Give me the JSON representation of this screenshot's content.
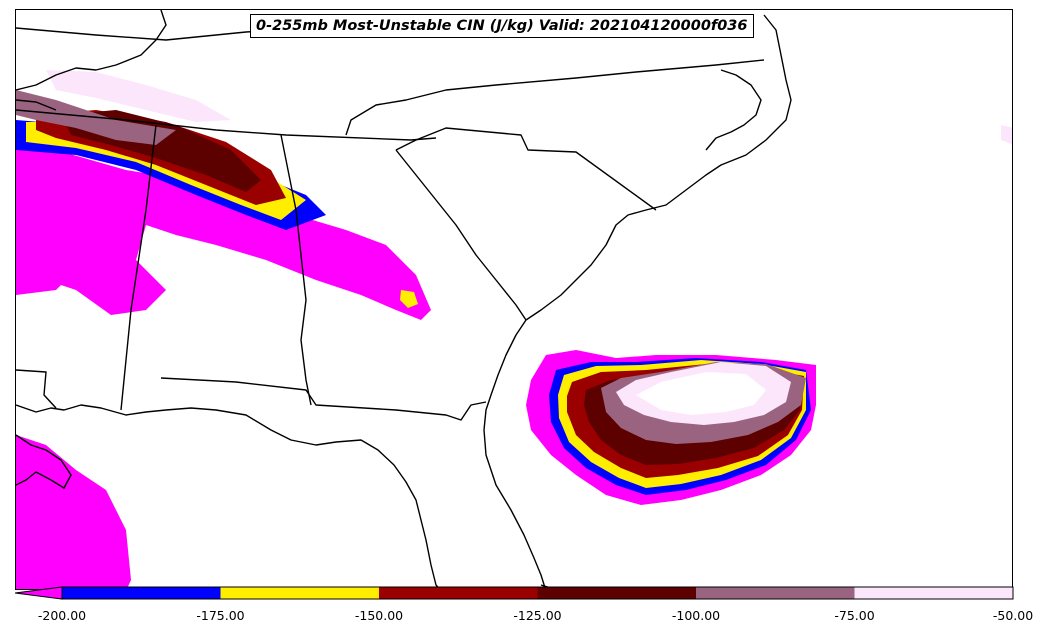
{
  "title": "0-255mb Most-Unstable CIN (J/kg) Valid: 202104120000f036",
  "colorbar": {
    "bins": [
      {
        "from": -200,
        "to": -175,
        "color": "#0000ff"
      },
      {
        "from": -175,
        "to": -150,
        "color": "#ffee00"
      },
      {
        "from": -150,
        "to": -125,
        "color": "#9b0000"
      },
      {
        "from": -125,
        "to": -100,
        "color": "#5c0000"
      },
      {
        "from": -100,
        "to": -75,
        "color": "#9a6480"
      },
      {
        "from": -75,
        "to": -50,
        "color": "#fce6fc"
      }
    ],
    "extend_min_color": "#ff00ff",
    "tick_labels": [
      "-200.00",
      "-175.00",
      "-150.00",
      "-125.00",
      "-100.00",
      "-75.00",
      "-50.00"
    ]
  },
  "colors": {
    "magenta": "#ff00ff",
    "blue": "#0000ff",
    "yellow": "#ffee00",
    "red": "#9b0000",
    "darkred": "#5c0000",
    "mauve": "#9a6480",
    "pale": "#fce6fc",
    "boundary": "#000000"
  }
}
